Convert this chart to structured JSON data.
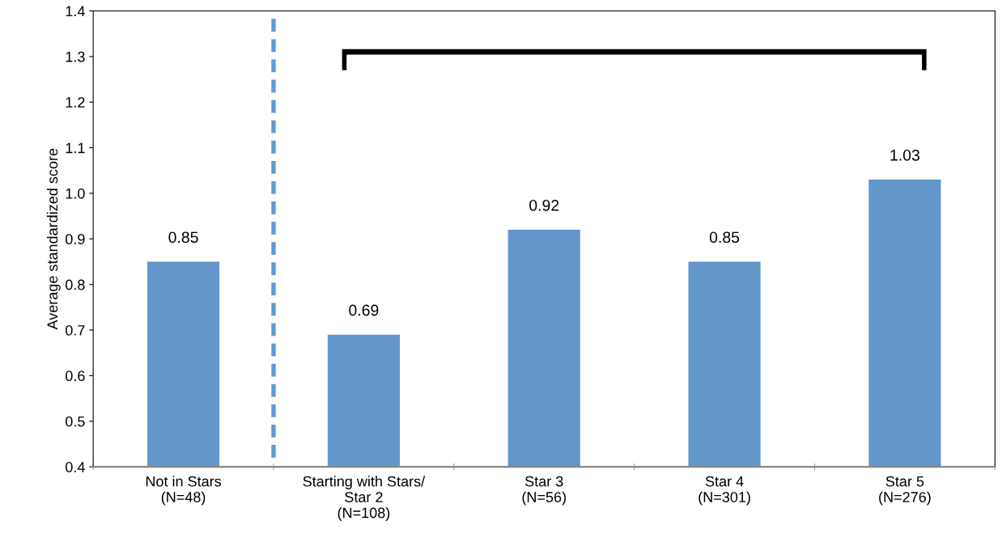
{
  "chart_data": {
    "type": "bar",
    "ylabel": "Average standardized score",
    "categories": [
      "Not in Stars\n(N=48)",
      "Starting with Stars/\nStar 2\n(N=108)",
      "Star 3\n(N=56)",
      "Star 4\n(N=301)",
      "Star 5\n(N=276)"
    ],
    "values": [
      0.85,
      0.69,
      0.92,
      0.85,
      1.03
    ],
    "color": "#6397c9",
    "data_labels": true,
    "ylim": [
      0.4,
      1.4
    ],
    "yticks": [
      0.4,
      0.5,
      0.6,
      0.7,
      0.8,
      0.9,
      {
        "value": 1.0,
        "label": "1.0"
      },
      1.1,
      1.2,
      1.3,
      1.4
    ],
    "grid": false,
    "legend": false
  }
}
